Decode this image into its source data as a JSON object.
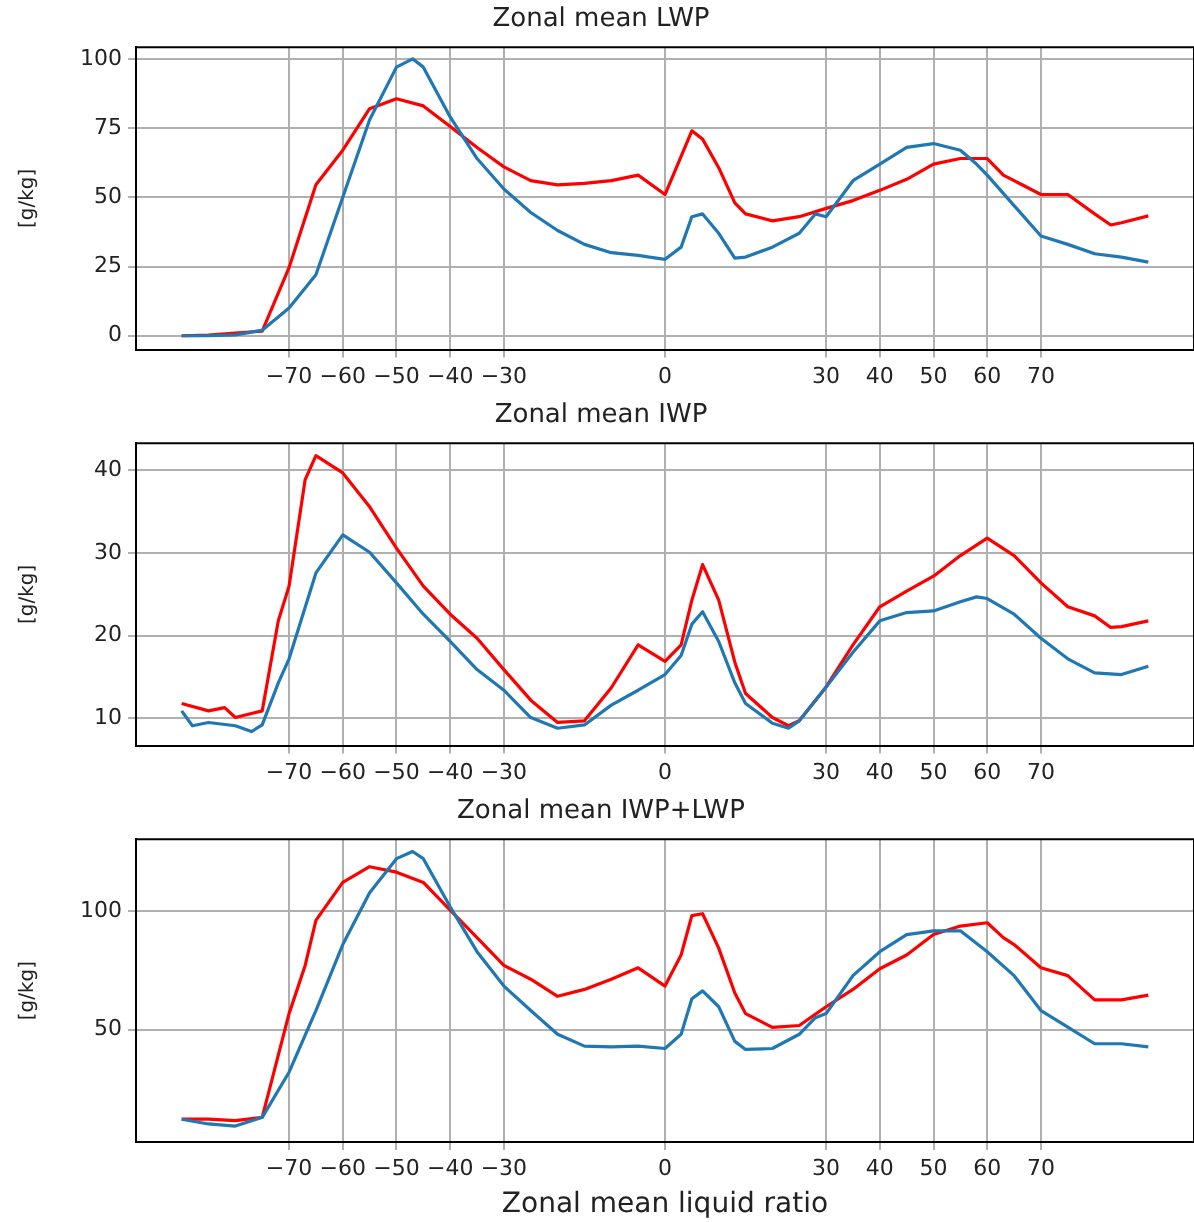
{
  "chart_data": [
    {
      "type": "line",
      "title": "Zonal mean LWP",
      "ylabel": "[g/kg]",
      "grid": true,
      "xlim": [
        -98.5,
        98.5
      ],
      "ylim": [
        -5,
        104.2
      ],
      "xticks": [
        {
          "value": -70,
          "label": "−70"
        },
        {
          "value": -60,
          "label": "−60"
        },
        {
          "value": -50,
          "label": "−50"
        },
        {
          "value": -40,
          "label": "−40"
        },
        {
          "value": -30,
          "label": "−30"
        },
        0,
        30,
        40,
        50,
        60,
        70
      ],
      "yticks": [
        0,
        25,
        50,
        75,
        100
      ],
      "series": [
        {
          "color": "#1f77b4",
          "x": [
            -90,
            -85,
            -80,
            -75,
            -70,
            -65,
            -60,
            -55,
            -50,
            -47,
            -45,
            -40,
            -35,
            -30,
            -25,
            -20,
            -15,
            -10,
            -5,
            0,
            3,
            5,
            7,
            10,
            13,
            15,
            20,
            25,
            28,
            30,
            35,
            40,
            45,
            50,
            55,
            58,
            60,
            65,
            70,
            75,
            80,
            85,
            90
          ],
          "values": [
            0,
            0,
            0.3,
            2,
            10,
            22,
            50,
            78,
            97,
            100,
            97,
            79,
            64,
            53,
            44.5,
            38,
            33,
            30,
            29,
            27.6,
            32,
            43,
            44,
            37,
            28,
            28.4,
            32,
            37,
            44,
            43,
            56,
            62,
            68,
            69.4,
            67,
            62,
            58,
            47,
            36,
            33,
            29.6,
            28.4,
            26.6
          ]
        },
        {
          "color": "#ff0000",
          "x": [
            -90,
            -85,
            -80,
            -75,
            -70,
            -65,
            -60,
            -55,
            -50,
            -45,
            -40,
            -35,
            -30,
            -25,
            -20,
            -15,
            -10,
            -5,
            0,
            5,
            7,
            10,
            13,
            15,
            20,
            25,
            30,
            35,
            40,
            45,
            50,
            55,
            60,
            63,
            65,
            70,
            75,
            80,
            83,
            85,
            90
          ],
          "values": [
            0,
            0.2,
            1,
            1.7,
            24.6,
            54.5,
            67,
            82,
            85.6,
            83,
            75.6,
            68,
            61,
            56,
            54.5,
            55,
            56,
            58,
            51,
            74,
            71,
            60.7,
            48,
            44,
            41.5,
            43,
            46,
            48.8,
            52.5,
            56.5,
            62,
            64,
            64,
            58,
            56,
            51,
            51,
            44,
            40,
            40.8,
            43.3
          ]
        }
      ]
    },
    {
      "type": "line",
      "title": "Zonal mean IWP",
      "ylabel": "[g/kg]",
      "grid": true,
      "xlim": [
        -98.5,
        98.5
      ],
      "ylim": [
        6.7,
        43.3
      ],
      "xticks": [
        {
          "value": -70,
          "label": "−70"
        },
        {
          "value": -60,
          "label": "−60"
        },
        {
          "value": -50,
          "label": "−50"
        },
        {
          "value": -40,
          "label": "−40"
        },
        {
          "value": -30,
          "label": "−30"
        },
        0,
        30,
        40,
        50,
        60,
        70
      ],
      "yticks": [
        10,
        20,
        30,
        40
      ],
      "series": [
        {
          "color": "#1f77b4",
          "x": [
            -90,
            -88,
            -85,
            -80,
            -77,
            -75,
            -72,
            -70,
            -65,
            -60,
            -55,
            -50,
            -45,
            -40,
            -35,
            -30,
            -25,
            -20,
            -15,
            -10,
            -5,
            0,
            3,
            5,
            7,
            10,
            13,
            15,
            20,
            23,
            25,
            30,
            35,
            40,
            45,
            50,
            55,
            58,
            60,
            65,
            70,
            75,
            80,
            85,
            90
          ],
          "values": [
            10.9,
            9.1,
            9.5,
            9.1,
            8.4,
            9.2,
            14.3,
            17.2,
            27.6,
            32.2,
            30.1,
            26.4,
            22.6,
            19.3,
            15.9,
            13.4,
            10.1,
            8.8,
            9.2,
            11.6,
            13.4,
            15.3,
            17.6,
            21.4,
            22.9,
            19.3,
            14.3,
            11.8,
            9.4,
            8.8,
            9.7,
            13.8,
            18,
            21.8,
            22.8,
            23,
            24.1,
            24.7,
            24.5,
            22.6,
            19.7,
            17.2,
            15.5,
            15.3,
            16.3
          ]
        },
        {
          "color": "#ff0000",
          "x": [
            -90,
            -85,
            -82,
            -80,
            -75,
            -72,
            -70,
            -67,
            -65,
            -60,
            -55,
            -50,
            -45,
            -40,
            -35,
            -30,
            -25,
            -20,
            -15,
            -10,
            -5,
            0,
            3,
            5,
            7,
            10,
            13,
            15,
            20,
            23,
            25,
            30,
            35,
            40,
            45,
            50,
            55,
            60,
            65,
            70,
            75,
            80,
            83,
            85,
            90
          ],
          "values": [
            11.8,
            10.9,
            11.3,
            10.1,
            10.9,
            21.8,
            26,
            38.9,
            41.8,
            39.7,
            35.6,
            30.6,
            26,
            22.6,
            19.7,
            15.9,
            12.2,
            9.5,
            9.7,
            13.7,
            18.9,
            16.9,
            18.9,
            24.3,
            28.6,
            24.3,
            16.8,
            13,
            10.1,
            9.1,
            9.7,
            13.8,
            18.9,
            23.5,
            25.4,
            27.2,
            29.7,
            31.8,
            29.7,
            26.4,
            23.5,
            22.4,
            21,
            21.1,
            21.8
          ]
        }
      ]
    },
    {
      "type": "line",
      "title": "Zonal mean IWP+LWP",
      "ylabel": "[g/kg]",
      "xlabel": "Zonal mean liquid ratio",
      "grid": true,
      "xlim": [
        -98.5,
        98.5
      ],
      "ylim": [
        2.6,
        130.2
      ],
      "xticks": [
        {
          "value": -70,
          "label": "−70"
        },
        {
          "value": -60,
          "label": "−60"
        },
        {
          "value": -50,
          "label": "−50"
        },
        {
          "value": -40,
          "label": "−40"
        },
        {
          "value": -30,
          "label": "−30"
        },
        0,
        30,
        40,
        50,
        60,
        70
      ],
      "yticks": [
        50,
        100
      ],
      "series": [
        {
          "color": "#1f77b4",
          "x": [
            -90,
            -85,
            -80,
            -75,
            -70,
            -65,
            -60,
            -55,
            -50,
            -47,
            -45,
            -40,
            -35,
            -30,
            -25,
            -20,
            -15,
            -10,
            -5,
            0,
            3,
            5,
            7,
            10,
            13,
            15,
            20,
            25,
            28,
            30,
            35,
            40,
            45,
            50,
            55,
            60,
            65,
            70,
            75,
            80,
            85,
            90
          ],
          "values": [
            12.2,
            10.2,
            9.3,
            13,
            32,
            58,
            85.8,
            107.6,
            122,
            125,
            122,
            101.7,
            82.8,
            68.3,
            58,
            48,
            43,
            42.7,
            43,
            42,
            48,
            63,
            66.3,
            59.6,
            45,
            41.6,
            42,
            48,
            55,
            56.7,
            72.7,
            82.8,
            90,
            91.6,
            91.6,
            82.8,
            72.7,
            58,
            51,
            44,
            44,
            42.7
          ]
        },
        {
          "color": "#ff0000",
          "x": [
            -90,
            -85,
            -80,
            -75,
            -70,
            -67,
            -65,
            -60,
            -55,
            -50,
            -45,
            -40,
            -35,
            -30,
            -25,
            -20,
            -15,
            -10,
            -5,
            0,
            3,
            5,
            7,
            10,
            13,
            15,
            20,
            25,
            30,
            35,
            40,
            45,
            50,
            55,
            60,
            63,
            65,
            70,
            75,
            80,
            85,
            90
          ],
          "values": [
            12.2,
            12.2,
            11.6,
            13,
            56.7,
            77,
            96,
            112,
            118.6,
            116.3,
            112,
            100.3,
            88.7,
            77,
            71.2,
            64,
            66.9,
            71.2,
            76,
            68.3,
            81.4,
            98,
            98.8,
            84.3,
            65.4,
            56.7,
            50.9,
            51.7,
            59.6,
            66.9,
            75.6,
            81.4,
            90,
            93.6,
            95,
            88.7,
            85.8,
            76,
            72.7,
            62.5,
            62.5,
            64.5
          ]
        }
      ]
    }
  ]
}
